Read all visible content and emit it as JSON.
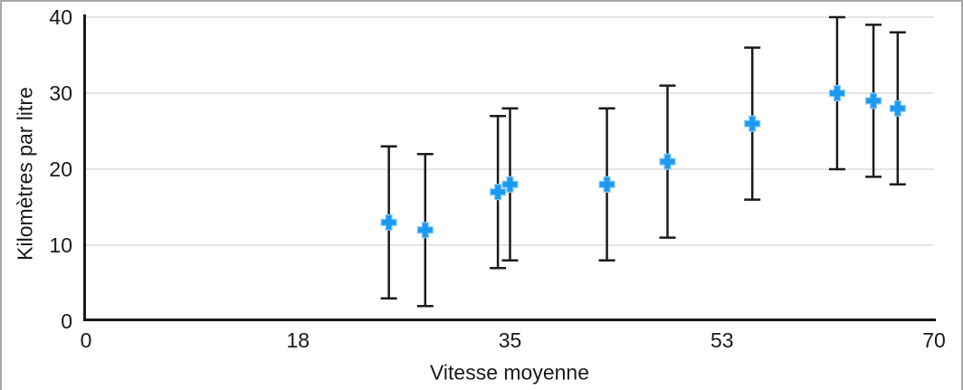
{
  "chart_data": {
    "type": "scatter",
    "title": "",
    "xlabel": "Vitesse moyenne",
    "ylabel": "Kilomètres par litre",
    "xlim": [
      0,
      70
    ],
    "ylim": [
      0,
      40
    ],
    "grid": "horizontal",
    "legend": "none",
    "xticks": {
      "positions": [
        0,
        17.5,
        35,
        52.5,
        70
      ],
      "labels": [
        "0",
        "18",
        "35",
        "53",
        "70"
      ]
    },
    "yticks": {
      "positions": [
        0,
        10,
        20,
        30,
        40
      ],
      "labels": [
        "0",
        "10",
        "20",
        "30",
        "40"
      ]
    },
    "series": [
      {
        "marker": "plus",
        "marker_color": "#1b9af2",
        "error_bars": {
          "type": "fixed",
          "plus": 10,
          "minus": 10
        },
        "points": [
          {
            "x": 25,
            "y": 13
          },
          {
            "x": 28,
            "y": 12
          },
          {
            "x": 34,
            "y": 17
          },
          {
            "x": 35,
            "y": 18
          },
          {
            "x": 43,
            "y": 18
          },
          {
            "x": 48,
            "y": 21
          },
          {
            "x": 55,
            "y": 26
          },
          {
            "x": 62,
            "y": 30
          },
          {
            "x": 65,
            "y": 29
          },
          {
            "x": 67,
            "y": 28
          }
        ]
      }
    ]
  },
  "colors": {
    "marker": "#1b9af2",
    "marker_halo": "#8fcdf7",
    "axis": "#1a1a1a",
    "error_bar": "#1a1a1a",
    "grid": "#dcdcdc",
    "text": "#1a1a1a",
    "frame_border": "#a8a8a8",
    "background": "#ffffff"
  }
}
